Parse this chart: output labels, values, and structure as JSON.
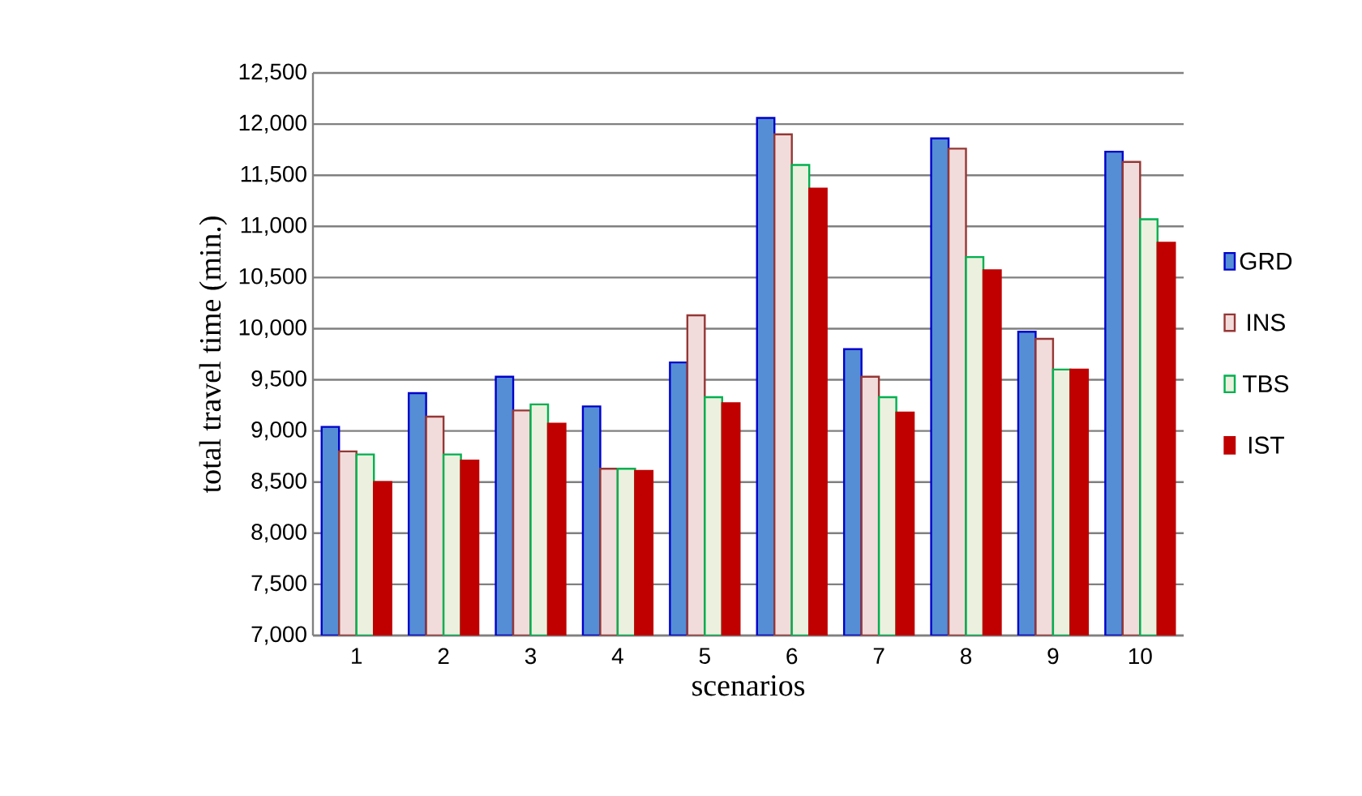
{
  "chart_data": {
    "type": "bar",
    "xlabel": "scenarios",
    "ylabel": "total travel time (min.)",
    "categories": [
      "1",
      "2",
      "3",
      "4",
      "5",
      "6",
      "7",
      "8",
      "9",
      "10"
    ],
    "series": [
      {
        "name": "GRD",
        "color": "#558ed5",
        "values": [
          9040,
          9370,
          9530,
          9240,
          9670,
          12060,
          9800,
          11860,
          9970,
          11730
        ]
      },
      {
        "name": "INS",
        "color": "#f2dcdb",
        "values": [
          8800,
          9140,
          9200,
          8630,
          10130,
          11900,
          9530,
          11760,
          9900,
          11630
        ]
      },
      {
        "name": "TBS",
        "color": "#ebf1de",
        "values": [
          8770,
          8770,
          9260,
          8630,
          9330,
          11600,
          9330,
          10700,
          9600,
          11070
        ]
      },
      {
        "name": "IST",
        "color": "#c00000",
        "values": [
          8500,
          8710,
          9070,
          8610,
          9270,
          11370,
          9180,
          10570,
          9600,
          10840
        ]
      }
    ],
    "ylim": [
      7000,
      12500
    ],
    "yticks": [
      {
        "value": 7000,
        "label": "7,000"
      },
      {
        "value": 7500,
        "label": "7,500"
      },
      {
        "value": 8000,
        "label": "8,000"
      },
      {
        "value": 8500,
        "label": "8,500"
      },
      {
        "value": 9000,
        "label": "9,000"
      },
      {
        "value": 9500,
        "label": "9,500"
      },
      {
        "value": 10000,
        "label": "10,000"
      },
      {
        "value": 10500,
        "label": "10,500"
      },
      {
        "value": 11000,
        "label": "11,000"
      },
      {
        "value": 11500,
        "label": "11,500"
      },
      {
        "value": 12000,
        "label": "12,000"
      },
      {
        "value": 12500,
        "label": "12,500"
      }
    ],
    "grid": "y",
    "legend": "right"
  }
}
